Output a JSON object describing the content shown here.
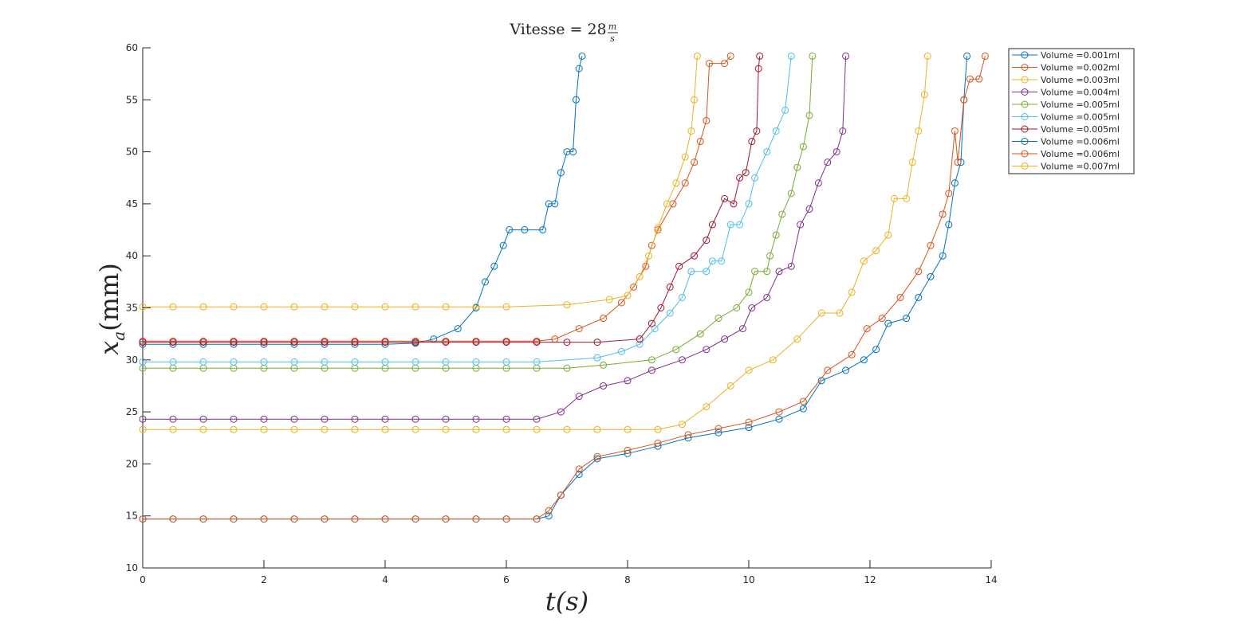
{
  "chart_data": {
    "type": "line",
    "title": {
      "text": "Vitesse = 28",
      "unit_numerator": "m",
      "unit_denominator": "s"
    },
    "xlabel": "t(s)",
    "ylabel": {
      "symbol": "x",
      "subscript": "a",
      "unit": "(mm)"
    },
    "xlim": [
      0,
      14
    ],
    "xticks": [
      0,
      2,
      4,
      6,
      8,
      10,
      12,
      14
    ],
    "ylim": [
      10,
      60
    ],
    "yticks": [
      10,
      15,
      20,
      25,
      30,
      35,
      40,
      45,
      50,
      55,
      60
    ],
    "legend": "outside-top-right",
    "series": [
      {
        "name": "Volume =0.001ml",
        "color": "#0072bd",
        "x": [
          0,
          0.5,
          1,
          1.5,
          2,
          2.5,
          3,
          3.5,
          4,
          4.5,
          4.8,
          5.2,
          5.5,
          5.65,
          5.8,
          5.95,
          6.05,
          6.3,
          6.6,
          6.7,
          6.8,
          6.9,
          7.0,
          7.1,
          7.15,
          7.2,
          7.25
        ],
        "values": [
          31.5,
          31.5,
          31.5,
          31.5,
          31.5,
          31.5,
          31.5,
          31.5,
          31.5,
          31.6,
          32,
          33,
          35,
          37.5,
          39,
          41,
          42.5,
          42.5,
          42.5,
          45,
          45,
          48,
          50,
          50,
          55,
          58,
          59.2
        ]
      },
      {
        "name": "Volume =0.002ml",
        "color": "#d95319",
        "x": [
          0,
          0.5,
          1,
          1.5,
          2,
          2.5,
          3,
          3.5,
          4,
          4.5,
          5,
          5.5,
          6,
          6.5,
          6.8,
          7.2,
          7.6,
          7.9,
          8.1,
          8.3,
          8.4,
          8.5,
          8.75,
          8.95,
          9.1,
          9.2,
          9.3,
          9.35,
          9.6,
          9.7
        ],
        "values": [
          31.8,
          31.8,
          31.8,
          31.8,
          31.8,
          31.8,
          31.8,
          31.8,
          31.8,
          31.8,
          31.8,
          31.8,
          31.8,
          31.8,
          32,
          33,
          34,
          35.5,
          37,
          39,
          41,
          42.5,
          45,
          47,
          49,
          51,
          53,
          58.5,
          58.5,
          59.2
        ]
      },
      {
        "name": "Volume =0.003ml",
        "color": "#edb120",
        "x": [
          0,
          0.5,
          1,
          1.5,
          2,
          2.5,
          3,
          3.5,
          4,
          4.5,
          5,
          5.5,
          6,
          7,
          7.7,
          8.0,
          8.2,
          8.35,
          8.5,
          8.65,
          8.8,
          8.95,
          9.05,
          9.1,
          9.15
        ],
        "values": [
          35.1,
          35.1,
          35.1,
          35.1,
          35.1,
          35.1,
          35.1,
          35.1,
          35.1,
          35.1,
          35.1,
          35.1,
          35.1,
          35.3,
          35.8,
          36.2,
          38,
          40,
          42.7,
          45,
          47,
          49.5,
          52,
          55,
          59.2
        ]
      },
      {
        "name": "Volume =0.004ml",
        "color": "#7e2f8e",
        "x": [
          0,
          0.5,
          1,
          1.5,
          2,
          2.5,
          3,
          3.5,
          4,
          4.5,
          5,
          5.5,
          6,
          6.5,
          6.9,
          7.2,
          7.6,
          8.0,
          8.4,
          8.9,
          9.3,
          9.6,
          9.9,
          10.05,
          10.3,
          10.5,
          10.7,
          10.85,
          11.0,
          11.15,
          11.3,
          11.45,
          11.55,
          11.6
        ],
        "values": [
          24.3,
          24.3,
          24.3,
          24.3,
          24.3,
          24.3,
          24.3,
          24.3,
          24.3,
          24.3,
          24.3,
          24.3,
          24.3,
          24.3,
          25,
          26.5,
          27.5,
          28,
          29,
          30,
          31,
          32,
          33,
          35,
          36,
          38.5,
          39,
          43,
          44.5,
          47,
          49,
          50,
          52,
          59.2
        ]
      },
      {
        "name": "Volume =0.005ml",
        "color": "#77ac30",
        "x": [
          0,
          0.5,
          1,
          1.5,
          2,
          2.5,
          3,
          3.5,
          4,
          4.5,
          5,
          5.5,
          6,
          6.5,
          7,
          7.6,
          8.4,
          8.8,
          9.2,
          9.5,
          9.8,
          10.0,
          10.1,
          10.3,
          10.35,
          10.45,
          10.55,
          10.7,
          10.8,
          10.9,
          11.0,
          11.05
        ],
        "values": [
          29.2,
          29.2,
          29.2,
          29.2,
          29.2,
          29.2,
          29.2,
          29.2,
          29.2,
          29.2,
          29.2,
          29.2,
          29.2,
          29.2,
          29.2,
          29.5,
          30,
          31,
          32.5,
          34,
          35,
          36.5,
          38.5,
          38.5,
          40,
          42,
          44,
          46,
          48.5,
          50.5,
          53.5,
          59.2
        ]
      },
      {
        "name": "Volume =0.005ml",
        "color": "#4dbeee",
        "x": [
          0,
          0.5,
          1,
          1.5,
          2,
          2.5,
          3,
          3.5,
          4,
          4.5,
          5,
          5.5,
          6,
          6.5,
          7.5,
          7.9,
          8.2,
          8.45,
          8.7,
          8.9,
          9.05,
          9.3,
          9.4,
          9.55,
          9.7,
          9.85,
          10.0,
          10.1,
          10.3,
          10.45,
          10.6,
          10.7
        ],
        "values": [
          29.8,
          29.8,
          29.8,
          29.8,
          29.8,
          29.8,
          29.8,
          29.8,
          29.8,
          29.8,
          29.8,
          29.8,
          29.8,
          29.8,
          30.2,
          30.8,
          31.5,
          33,
          34.5,
          36,
          38.5,
          38.5,
          39.5,
          39.5,
          43,
          43,
          45,
          47.5,
          50,
          52,
          54,
          59.2
        ]
      },
      {
        "name": "Volume =0.005ml",
        "color": "#a2142f",
        "x": [
          0,
          0.5,
          1,
          1.5,
          2,
          2.5,
          3,
          3.5,
          4,
          4.5,
          5,
          5.5,
          6,
          6.5,
          7,
          7.5,
          8.2,
          8.4,
          8.55,
          8.7,
          8.85,
          9.1,
          9.3,
          9.4,
          9.6,
          9.75,
          9.85,
          9.95,
          10.05,
          10.13,
          10.16,
          10.18
        ],
        "values": [
          31.7,
          31.7,
          31.7,
          31.7,
          31.7,
          31.7,
          31.7,
          31.7,
          31.7,
          31.7,
          31.7,
          31.7,
          31.7,
          31.7,
          31.7,
          31.7,
          32,
          33.5,
          35,
          37,
          39,
          40,
          41.5,
          43,
          45.5,
          45,
          47.5,
          48,
          51,
          52,
          58,
          59.2
        ]
      },
      {
        "name": "Volume =0.006ml",
        "color": "#0072bd",
        "x": [
          0,
          0.5,
          1,
          1.5,
          2,
          2.5,
          3,
          3.5,
          4,
          4.5,
          5,
          5.5,
          6,
          6.5,
          6.7,
          6.9,
          7.2,
          7.5,
          8.0,
          8.5,
          9.0,
          9.5,
          10.0,
          10.5,
          10.9,
          11.2,
          11.6,
          11.9,
          12.1,
          12.3,
          12.6,
          12.8,
          13.0,
          13.2,
          13.3,
          13.4,
          13.5,
          13.55,
          13.6
        ],
        "values": [
          14.7,
          14.7,
          14.7,
          14.7,
          14.7,
          14.7,
          14.7,
          14.7,
          14.7,
          14.7,
          14.7,
          14.7,
          14.7,
          14.7,
          15,
          17,
          19,
          20.5,
          21,
          21.7,
          22.5,
          23,
          23.5,
          24.3,
          25.3,
          28,
          29,
          30,
          31,
          33.5,
          34,
          36,
          38,
          40,
          43,
          47,
          49,
          55,
          59.2
        ]
      },
      {
        "name": "Volume =0.006ml",
        "color": "#d95319",
        "x": [
          0,
          0.5,
          1,
          1.5,
          2,
          2.5,
          3,
          3.5,
          4,
          4.5,
          5,
          5.5,
          6,
          6.5,
          6.7,
          6.9,
          7.2,
          7.5,
          8.0,
          8.5,
          9.0,
          9.5,
          10.0,
          10.5,
          10.9,
          11.3,
          11.7,
          11.95,
          12.2,
          12.5,
          12.8,
          13.0,
          13.2,
          13.3,
          13.4,
          13.45,
          13.55,
          13.65,
          13.8,
          13.9
        ],
        "values": [
          14.7,
          14.7,
          14.7,
          14.7,
          14.7,
          14.7,
          14.7,
          14.7,
          14.7,
          14.7,
          14.7,
          14.7,
          14.7,
          14.7,
          15.5,
          17,
          19.5,
          20.7,
          21.3,
          22,
          22.8,
          23.4,
          24,
          25,
          26,
          29,
          30.5,
          33,
          34,
          36,
          38.5,
          41,
          44,
          46,
          52,
          49,
          55,
          57,
          57,
          59.2
        ]
      },
      {
        "name": "Volume =0.007ml",
        "color": "#edb120",
        "x": [
          0,
          0.5,
          1,
          1.5,
          2,
          2.5,
          3,
          3.5,
          4,
          4.5,
          5,
          5.5,
          6,
          6.5,
          7,
          7.5,
          8,
          8.5,
          8.9,
          9.3,
          9.7,
          10.0,
          10.4,
          10.8,
          11.2,
          11.5,
          11.7,
          11.9,
          12.1,
          12.3,
          12.4,
          12.6,
          12.7,
          12.8,
          12.9,
          12.95
        ],
        "values": [
          23.3,
          23.3,
          23.3,
          23.3,
          23.3,
          23.3,
          23.3,
          23.3,
          23.3,
          23.3,
          23.3,
          23.3,
          23.3,
          23.3,
          23.3,
          23.3,
          23.3,
          23.3,
          23.8,
          25.5,
          27.5,
          29,
          30,
          32,
          34.5,
          34.5,
          36.5,
          39.5,
          40.5,
          42,
          45.5,
          45.5,
          49,
          52,
          55.5,
          59.2
        ]
      }
    ]
  }
}
